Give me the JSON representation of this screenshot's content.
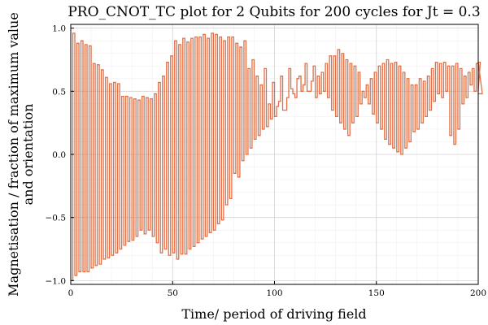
{
  "chart_data": {
    "type": "line",
    "step": "post",
    "title": "PRO_CNOT_TC plot for 2 Qubits for 200 cycles for Jt = 0.3",
    "xlabel": "Time/ period of driving field",
    "ylabel_lines": [
      "Magnetisation / fraction of maximum value",
      "and orientation"
    ],
    "xlim": [
      0,
      200
    ],
    "ylim": [
      -1.03,
      1.03
    ],
    "x_ticks": [
      0,
      50,
      100,
      150,
      200
    ],
    "x_tick_labels": [
      "0",
      "50",
      "100",
      "150",
      "200"
    ],
    "y_ticks": [
      -1.0,
      -0.5,
      0.0,
      0.5,
      1.0
    ],
    "y_tick_labels": [
      "−1.0",
      "−0.5",
      "0.0",
      "0.5",
      "1.0"
    ],
    "grid": true,
    "minor_grid": true,
    "legend": "none",
    "series_color": "#e26f46",
    "series": [
      {
        "values": [
          -1.0,
          0.96,
          -0.96,
          0.88,
          -0.93,
          0.9,
          -0.93,
          0.87,
          -0.93,
          0.86,
          -0.9,
          0.72,
          -0.88,
          0.71,
          -0.87,
          0.67,
          -0.83,
          0.61,
          -0.82,
          0.56,
          -0.8,
          0.57,
          -0.78,
          0.56,
          -0.75,
          0.46,
          -0.72,
          0.46,
          -0.69,
          0.45,
          -0.68,
          0.44,
          -0.65,
          0.43,
          -0.6,
          0.46,
          -0.63,
          0.45,
          -0.6,
          0.44,
          -0.65,
          0.48,
          -0.7,
          0.57,
          -0.78,
          0.62,
          -0.75,
          0.73,
          -0.8,
          0.78,
          -0.78,
          0.9,
          -0.83,
          0.87,
          -0.79,
          0.92,
          -0.79,
          0.89,
          -0.75,
          0.92,
          -0.73,
          0.93,
          -0.7,
          0.93,
          -0.67,
          0.95,
          -0.65,
          0.92,
          -0.62,
          0.96,
          -0.6,
          0.95,
          -0.55,
          0.93,
          -0.52,
          0.9,
          -0.4,
          0.93,
          -0.35,
          0.93,
          -0.15,
          0.88,
          -0.18,
          0.85,
          -0.05,
          0.9,
          0.0,
          0.68,
          0.05,
          0.75,
          0.12,
          0.62,
          0.15,
          0.55,
          0.2,
          0.68,
          0.22,
          0.4,
          0.28,
          0.57,
          0.3,
          0.38,
          0.42,
          0.62,
          0.35,
          0.35,
          0.45,
          0.68,
          0.52,
          0.48,
          0.45,
          0.6,
          0.62,
          0.5,
          0.55,
          0.72,
          0.5,
          0.5,
          0.58,
          0.7,
          0.45,
          0.62,
          0.48,
          0.65,
          0.5,
          0.72,
          0.45,
          0.78,
          0.35,
          0.78,
          0.3,
          0.83,
          0.25,
          0.8,
          0.2,
          0.75,
          0.15,
          0.72,
          0.25,
          0.7,
          0.3,
          0.65,
          0.4,
          0.5,
          0.45,
          0.55,
          0.4,
          0.6,
          0.32,
          0.65,
          0.25,
          0.7,
          0.2,
          0.72,
          0.12,
          0.75,
          0.08,
          0.72,
          0.05,
          0.73,
          0.02,
          0.7,
          0.0,
          0.65,
          0.05,
          0.6,
          0.1,
          0.55,
          0.18,
          0.55,
          0.2,
          0.6,
          0.25,
          0.58,
          0.3,
          0.62,
          0.35,
          0.68,
          0.42,
          0.73,
          0.48,
          0.72,
          0.45,
          0.73,
          0.5,
          0.7,
          0.15,
          0.7,
          0.08,
          0.72,
          0.2,
          0.68,
          0.4,
          0.62,
          0.45,
          0.65,
          0.55,
          0.68,
          0.5,
          0.72,
          0.5,
          0.73,
          0.48
        ]
      }
    ]
  }
}
